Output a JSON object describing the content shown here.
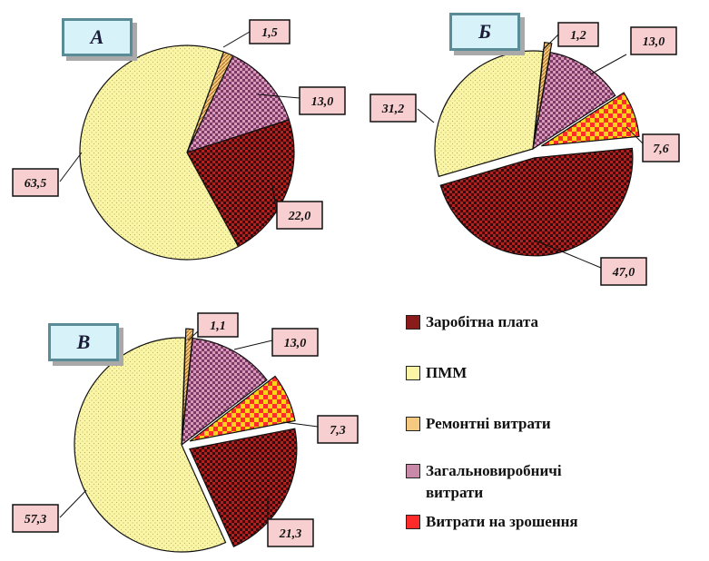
{
  "colors": {
    "wages": "#8b1a1a",
    "fuel": "#fbf6a5",
    "repair": "#f5c980",
    "overhead": "#c98aaa",
    "depreciation": "#ff2a2a",
    "label_bg": "#f7cfd0"
  },
  "legend": [
    {
      "key": "wages",
      "label": "Заробітна плата"
    },
    {
      "key": "fuel",
      "label": "ПММ"
    },
    {
      "key": "repair",
      "label": "Ремонтні витрати"
    },
    {
      "key": "overhead",
      "label": "Загальновиробничі витрати"
    },
    {
      "key": "depreciation",
      "label": "Витрати на зрошення"
    }
  ],
  "chart_data": [
    {
      "type": "pie",
      "title": "А",
      "categories": [
        "Заробітна плата",
        "ПММ",
        "Ремонтні витрати",
        "Загальновиробничі витрати"
      ],
      "values": [
        22.0,
        63.5,
        1.5,
        13.0
      ],
      "labels": [
        "22,0",
        "63,5",
        "1,5",
        "13,0"
      ],
      "exploded": []
    },
    {
      "type": "pie",
      "title": "Б",
      "categories": [
        "Заробітна плата",
        "ПММ",
        "Ремонтні витрати",
        "Загальновиробничі витрати",
        "Витрати на зрошення"
      ],
      "values": [
        47.0,
        31.2,
        1.2,
        13.0,
        7.6
      ],
      "labels": [
        "47,0",
        "31,2",
        "1,2",
        "13,0",
        "7,6"
      ],
      "exploded": [
        "Заробітна плата",
        "Ремонтні витрати",
        "Витрати на зрошення"
      ]
    },
    {
      "type": "pie",
      "title": "В",
      "categories": [
        "Заробітна плата",
        "ПММ",
        "Ремонтні витрати",
        "Загальновиробничі витрати",
        "Витрати на зрошення"
      ],
      "values": [
        21.3,
        57.3,
        1.1,
        13.0,
        7.3
      ],
      "labels": [
        "21,3",
        "57,3",
        "1,1",
        "13,0",
        "7,3"
      ],
      "exploded": [
        "Заробітна плата",
        "Ремонтні витрати",
        "Витрати на зрошення"
      ]
    }
  ]
}
